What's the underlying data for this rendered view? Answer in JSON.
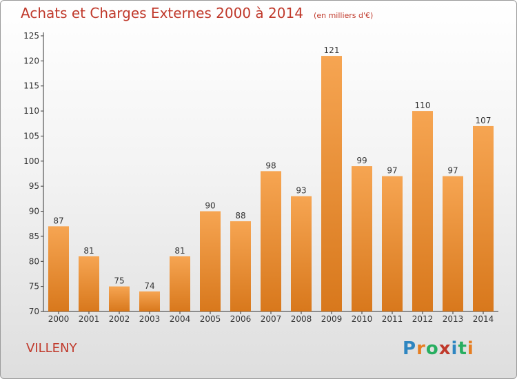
{
  "title": "Achats et Charges Externes 2000 à 2014",
  "unit_note": "(en milliers d'€)",
  "commune": "VILLENY",
  "logo": {
    "text": "Proxiti",
    "letters": [
      {
        "ch": "P",
        "color": "#2e86c1"
      },
      {
        "ch": "r",
        "color": "#e67e22"
      },
      {
        "ch": "o",
        "color": "#27ae60"
      },
      {
        "ch": "x",
        "color": "#c0392b"
      },
      {
        "ch": "i",
        "color": "#2e86c1"
      },
      {
        "ch": "t",
        "color": "#27ae60"
      },
      {
        "ch": "i",
        "color": "#e67e22"
      }
    ]
  },
  "colors": {
    "accent": "#c0392b",
    "bar_light": "#f6a552",
    "bar_dark": "#d8781c",
    "axis": "#333333"
  },
  "chart_data": {
    "type": "bar",
    "categories": [
      "2000",
      "2001",
      "2002",
      "2003",
      "2004",
      "2005",
      "2006",
      "2007",
      "2008",
      "2009",
      "2010",
      "2011",
      "2012",
      "2013",
      "2014"
    ],
    "values": [
      87,
      81,
      75,
      74,
      81,
      90,
      88,
      98,
      93,
      121,
      99,
      97,
      110,
      97,
      107
    ],
    "data_labels": [
      "87",
      "81",
      "75",
      "74",
      "81",
      "90",
      "88",
      "98",
      "93",
      "121",
      "99",
      "97",
      "110",
      "97",
      "107"
    ],
    "ylim": [
      70,
      125
    ],
    "yticks": [
      70,
      75,
      80,
      85,
      90,
      95,
      100,
      105,
      110,
      115,
      120,
      125
    ],
    "grid": false
  }
}
